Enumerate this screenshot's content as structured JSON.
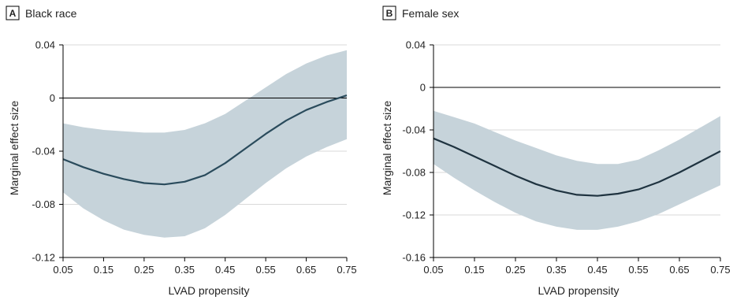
{
  "chart_data": [
    {
      "type": "line",
      "panel_letter": "A",
      "title": "Black race",
      "xlabel": "LVAD propensity",
      "ylabel": "Marginal effect size",
      "xlim": [
        0.05,
        0.75
      ],
      "ylim": [
        -0.12,
        0.04
      ],
      "x_ticks": [
        "0.05",
        "0.15",
        "0.25",
        "0.35",
        "0.45",
        "0.55",
        "0.65",
        "0.75"
      ],
      "y_ticks": [
        "0.04",
        "0",
        "-0.04",
        "-0.08",
        "-0.12"
      ],
      "grid": "horizontal",
      "reference_line": 0,
      "colors": {
        "line": "#2a4b5c",
        "band": "#c6d3da",
        "grid": "#d9d9d9",
        "axis": "#000000"
      },
      "series": [
        {
          "x": [
            0.05,
            0.1,
            0.15,
            0.2,
            0.25,
            0.3,
            0.35,
            0.4,
            0.45,
            0.5,
            0.55,
            0.6,
            0.65,
            0.7,
            0.75
          ],
          "y": [
            -0.046,
            -0.052,
            -0.057,
            -0.061,
            -0.064,
            -0.065,
            -0.063,
            -0.058,
            -0.049,
            -0.038,
            -0.027,
            -0.017,
            -0.009,
            -0.003,
            0.002
          ],
          "lower": [
            -0.071,
            -0.083,
            -0.092,
            -0.099,
            -0.103,
            -0.105,
            -0.104,
            -0.098,
            -0.088,
            -0.076,
            -0.064,
            -0.053,
            -0.044,
            -0.037,
            -0.031
          ],
          "upper": [
            -0.019,
            -0.022,
            -0.024,
            -0.025,
            -0.026,
            -0.026,
            -0.024,
            -0.019,
            -0.012,
            -0.002,
            0.008,
            0.018,
            0.026,
            0.032,
            0.036
          ]
        }
      ]
    },
    {
      "type": "line",
      "panel_letter": "B",
      "title": "Female sex",
      "xlabel": "LVAD propensity",
      "ylabel": "Marginal effect size",
      "xlim": [
        0.05,
        0.75
      ],
      "ylim": [
        -0.16,
        0.04
      ],
      "x_ticks": [
        "0.05",
        "0.15",
        "0.25",
        "0.35",
        "0.45",
        "0.55",
        "0.65",
        "0.75"
      ],
      "y_ticks": [
        "0.04",
        "0",
        "-0.04",
        "-0.08",
        "-0.12",
        "-0.16"
      ],
      "grid": "horizontal",
      "reference_line": 0,
      "colors": {
        "line": "#1f3340",
        "band": "#c6d3da",
        "grid": "#d9d9d9",
        "axis": "#000000"
      },
      "series": [
        {
          "x": [
            0.05,
            0.1,
            0.15,
            0.2,
            0.25,
            0.3,
            0.35,
            0.4,
            0.45,
            0.5,
            0.55,
            0.6,
            0.65,
            0.7,
            0.75
          ],
          "y": [
            -0.048,
            -0.056,
            -0.065,
            -0.074,
            -0.083,
            -0.091,
            -0.097,
            -0.101,
            -0.102,
            -0.1,
            -0.096,
            -0.089,
            -0.08,
            -0.07,
            -0.06
          ],
          "lower": [
            -0.072,
            -0.085,
            -0.097,
            -0.108,
            -0.118,
            -0.126,
            -0.131,
            -0.134,
            -0.134,
            -0.131,
            -0.126,
            -0.119,
            -0.11,
            -0.101,
            -0.092
          ],
          "upper": [
            -0.022,
            -0.028,
            -0.034,
            -0.042,
            -0.05,
            -0.057,
            -0.064,
            -0.069,
            -0.072,
            -0.072,
            -0.068,
            -0.059,
            -0.049,
            -0.038,
            -0.027
          ]
        }
      ]
    }
  ]
}
